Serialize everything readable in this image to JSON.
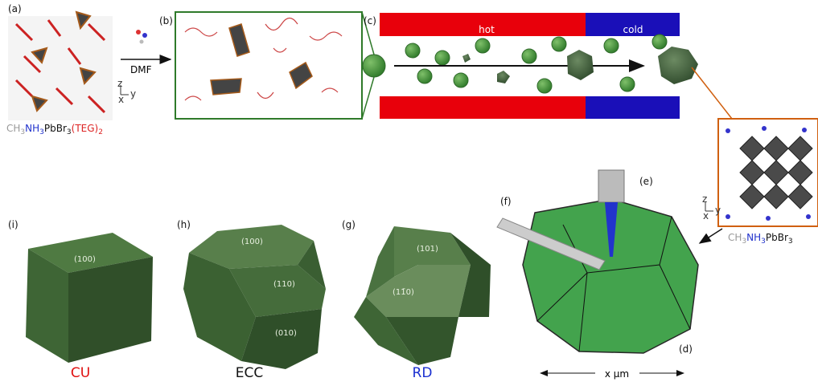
{
  "panel_labels": {
    "a": "(a)",
    "b": "(b)",
    "c": "(c)",
    "d": "(d)",
    "e": "(e)",
    "f": "(f)",
    "g": "(g)",
    "h": "(h)",
    "i": "(i)"
  },
  "reagent": "DMF",
  "precursor_formula": [
    "CH",
    "3",
    "NH",
    "3",
    "PbBr",
    "3",
    "(TEG)",
    "2"
  ],
  "product_formula": [
    "CH",
    "3",
    "NH",
    "3",
    "PbBr",
    "3"
  ],
  "zones": {
    "hot": "hot",
    "cold": "cold"
  },
  "axes": {
    "z": "z",
    "y": "y",
    "x": "x"
  },
  "crystals": [
    {
      "name": "CU",
      "facets": [
        "(100)"
      ]
    },
    {
      "name": "ECC",
      "facets": [
        "(100)",
        "(110)",
        "(010)"
      ]
    },
    {
      "name": "RD",
      "facets": [
        "(101)",
        "(11̄0)"
      ]
    }
  ],
  "scale_label": "x μm"
}
